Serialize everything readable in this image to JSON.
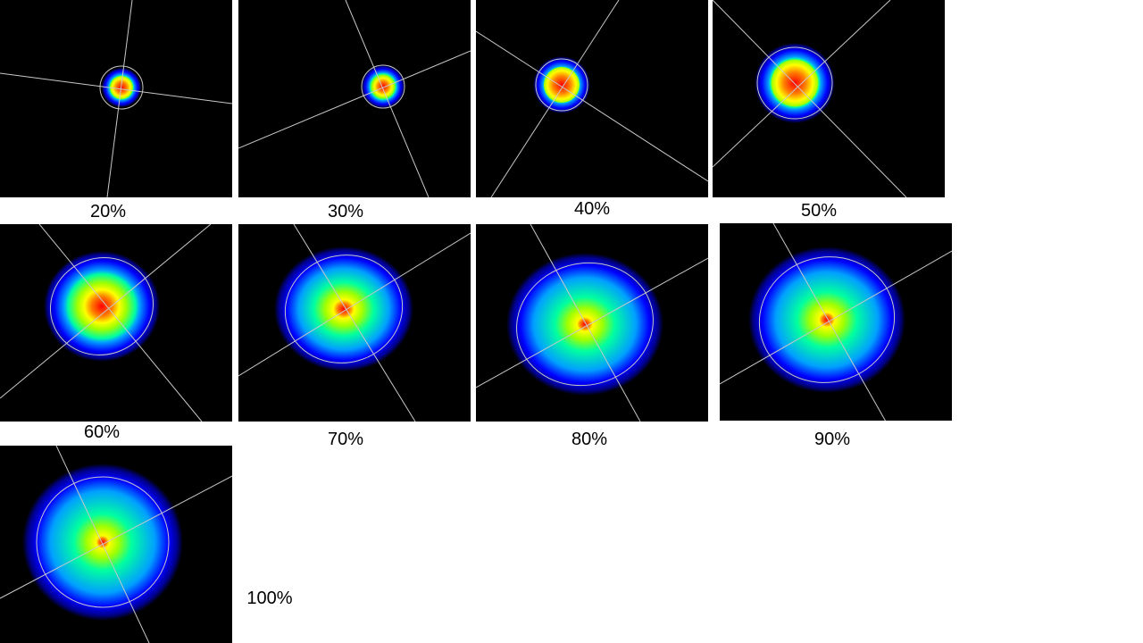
{
  "slide": {
    "panels": [
      {
        "label": "20%"
      },
      {
        "label": "30%"
      },
      {
        "label": "40%"
      },
      {
        "label": "50%"
      },
      {
        "label": "60%"
      },
      {
        "label": "70%"
      },
      {
        "label": "80%"
      },
      {
        "label": "90%"
      },
      {
        "label": "100%"
      }
    ]
  },
  "colormap": [
    "#000000",
    "#00008f",
    "#0000ff",
    "#00a0ff",
    "#00ffa0",
    "#a0ff00",
    "#ffff00",
    "#ff8000",
    "#ff0000"
  ],
  "overlay_color": "#c8c8c8"
}
